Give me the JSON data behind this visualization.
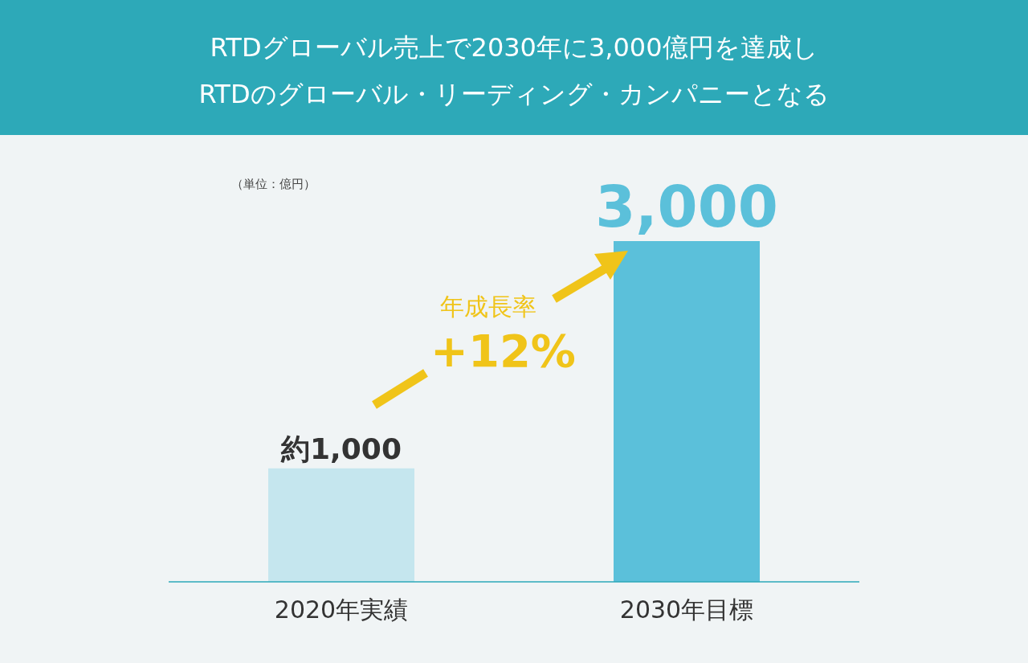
{
  "chart_data": {
    "type": "bar",
    "title": "RTDグローバル売上で2030年に3,000億円を達成し",
    "subtitle": "RTDのグローバル・リーディング・カンパニーとなる",
    "categories": [
      "2020年実績",
      "2030年目標"
    ],
    "values": [
      1000,
      3000
    ],
    "colors": [
      "#c5e6ee",
      "#5bc0da"
    ],
    "value_labels": [
      "約1,000",
      "3,000"
    ],
    "annotations": [
      "（単位：億円）",
      "年成長率",
      "+12%"
    ],
    "grid": false,
    "legend": false
  }
}
